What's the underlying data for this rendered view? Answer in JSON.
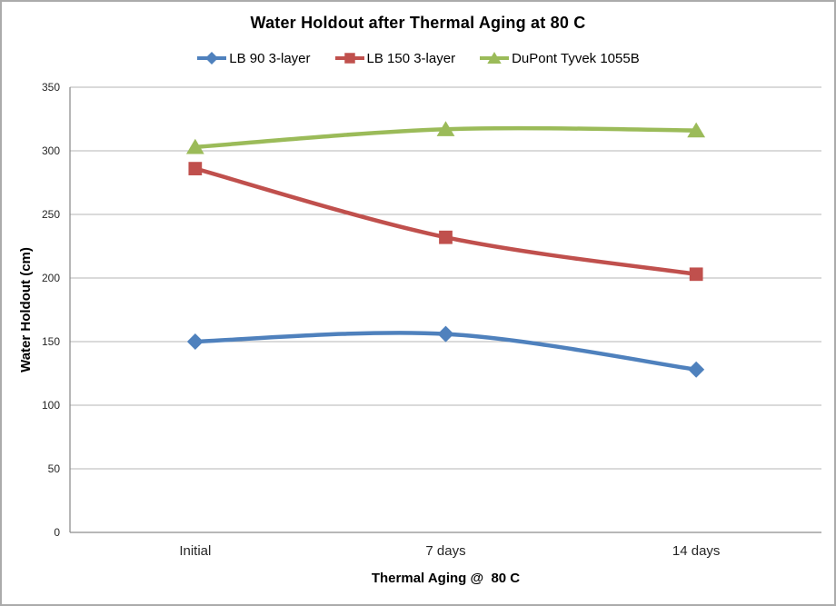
{
  "chart_data": {
    "type": "line",
    "title": "Water Holdout after Thermal Aging at 80 C",
    "categories": [
      "Initial",
      "7 days",
      "14 days"
    ],
    "series": [
      {
        "name": "LB 90 3-layer",
        "values": [
          150,
          156,
          128
        ],
        "color": "#4F81BD",
        "marker": "diamond"
      },
      {
        "name": "LB 150 3-layer",
        "values": [
          286,
          232,
          203
        ],
        "color": "#C0504D",
        "marker": "square"
      },
      {
        "name": "DuPont Tyvek 1055B",
        "values": [
          303,
          317,
          316
        ],
        "color": "#9BBB59",
        "marker": "triangle"
      }
    ],
    "xlabel": "Thermal Aging @  80 C",
    "ylabel": "Water Holdout (cm)",
    "ylim": [
      0,
      350
    ],
    "yticks": [
      0,
      50,
      100,
      150,
      200,
      250,
      300,
      350
    ],
    "grid": true,
    "legend_position": "top",
    "smoothed_lines": true,
    "gridline_color": "#b5b5b5",
    "axis_line_color": "#8e8e8e"
  }
}
